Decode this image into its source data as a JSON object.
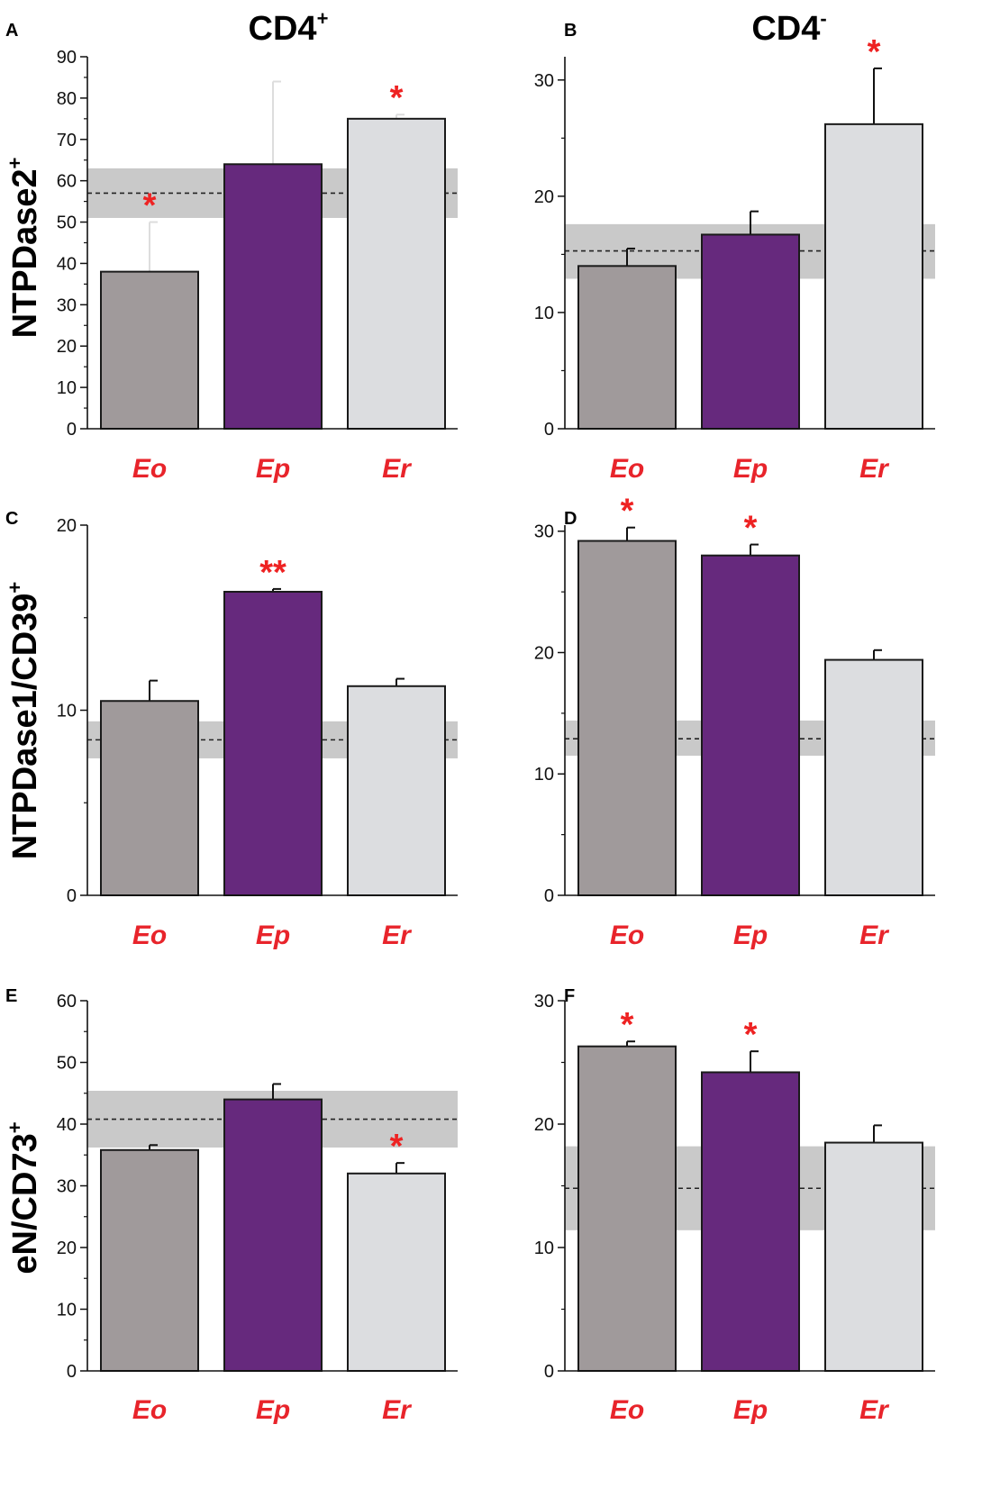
{
  "figure": {
    "column_titles": [
      {
        "base": "CD4",
        "sup": "+"
      },
      {
        "base": "CD4",
        "sup": "-"
      }
    ],
    "row_titles": [
      {
        "base": "NTPDase2",
        "sup": "+"
      },
      {
        "base": "NTPDase1/CD39",
        "sup": "+"
      },
      {
        "base": "eN/CD73",
        "sup": "+"
      }
    ]
  },
  "colors": {
    "Eo": "#a09a9b",
    "Ep": "#66297d",
    "Er": "#dcdde0",
    "sig": "#ee2222",
    "category_label": "#e8242b",
    "band": "#c9c9c9"
  },
  "chart_data": [
    {
      "panel": "A",
      "type": "bar",
      "categories": [
        "Eo",
        "Ep",
        "Er"
      ],
      "values": [
        38,
        64,
        75
      ],
      "errors": [
        12,
        20,
        1
      ],
      "error_colors": [
        "#dddddd",
        "#dddddd",
        "#dddddd"
      ],
      "significance": [
        "*",
        "",
        "*"
      ],
      "ylim": [
        0,
        90
      ],
      "yticks": [
        0,
        10,
        20,
        30,
        40,
        50,
        60,
        70,
        80,
        90
      ],
      "reference": {
        "mean": 57,
        "low": 51,
        "high": 63
      }
    },
    {
      "panel": "B",
      "type": "bar",
      "categories": [
        "Eo",
        "Ep",
        "Er"
      ],
      "values": [
        14,
        16.7,
        26.2
      ],
      "errors": [
        1.5,
        2.0,
        4.8
      ],
      "significance": [
        "",
        "",
        "*"
      ],
      "ylim": [
        0,
        32
      ],
      "yticks": [
        0,
        10,
        20,
        30
      ],
      "reference": {
        "mean": 15.3,
        "low": 12.9,
        "high": 17.6
      }
    },
    {
      "panel": "C",
      "type": "bar",
      "categories": [
        "Eo",
        "Ep",
        "Er"
      ],
      "values": [
        10.5,
        16.4,
        11.3
      ],
      "errors": [
        1.1,
        0.15,
        0.4
      ],
      "significance": [
        "",
        "**",
        ""
      ],
      "ylim": [
        0,
        20
      ],
      "yticks": [
        0,
        10,
        20
      ],
      "reference": {
        "mean": 8.4,
        "low": 7.4,
        "high": 9.4
      }
    },
    {
      "panel": "D",
      "type": "bar",
      "categories": [
        "Eo",
        "Ep",
        "Er"
      ],
      "values": [
        29.2,
        28,
        19.4
      ],
      "errors": [
        1.1,
        0.9,
        0.8
      ],
      "significance": [
        "*",
        "*",
        ""
      ],
      "ylim": [
        0,
        30.5
      ],
      "yticks": [
        0,
        10,
        20,
        30
      ],
      "reference": {
        "mean": 12.9,
        "low": 11.5,
        "high": 14.4
      }
    },
    {
      "panel": "E",
      "type": "bar",
      "categories": [
        "Eo",
        "Ep",
        "Er"
      ],
      "values": [
        35.8,
        44,
        32
      ],
      "errors": [
        0.8,
        2.5,
        1.7
      ],
      "significance": [
        "",
        "",
        "*"
      ],
      "ylim": [
        0,
        60
      ],
      "yticks": [
        0,
        10,
        20,
        30,
        40,
        50,
        60
      ],
      "reference": {
        "mean": 40.8,
        "low": 36.2,
        "high": 45.4
      }
    },
    {
      "panel": "F",
      "type": "bar",
      "categories": [
        "Eo",
        "Ep",
        "Er"
      ],
      "values": [
        26.3,
        24.2,
        18.5
      ],
      "errors": [
        0.4,
        1.7,
        1.4
      ],
      "significance": [
        "*",
        "*",
        ""
      ],
      "ylim": [
        0,
        30
      ],
      "yticks": [
        0,
        10,
        20,
        30
      ],
      "reference": {
        "mean": 14.8,
        "low": 11.4,
        "high": 18.2
      }
    }
  ]
}
